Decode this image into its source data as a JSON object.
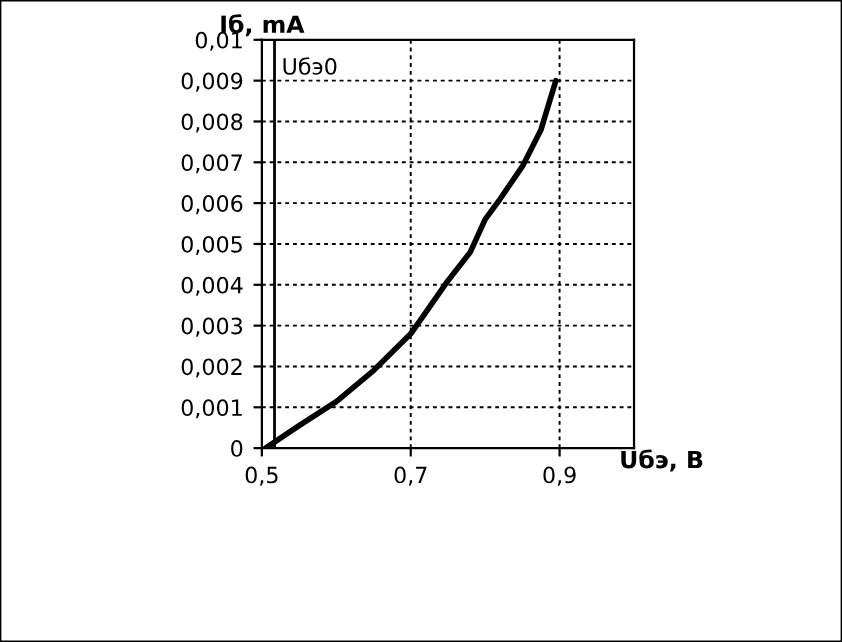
{
  "chart_data": {
    "type": "line",
    "xlabel": "Uбэ, В",
    "ylabel": "Iб, mA",
    "series": [
      {
        "color": "#000000",
        "x": [
          0.505,
          0.55,
          0.6,
          0.65,
          0.7,
          0.75,
          0.78,
          0.8,
          0.82,
          0.85,
          0.875,
          0.885,
          0.895
        ],
        "values": [
          0,
          0.00055,
          0.00114,
          0.0019,
          0.0028,
          0.0041,
          0.0048,
          0.0056,
          0.0061,
          0.0069,
          0.0078,
          0.0084,
          0.009
        ]
      }
    ],
    "xlim": [
      0.5,
      1.0
    ],
    "ylim": [
      0,
      0.01
    ],
    "xticks": [
      {
        "value": 0.5,
        "label": "0,5"
      },
      {
        "value": 0.7,
        "label": "0,7"
      },
      {
        "value": 0.9,
        "label": "0,9"
      }
    ],
    "yticks": [
      0,
      {
        "value": 0.001,
        "label": "0,001"
      },
      {
        "value": 0.002,
        "label": "0,002"
      },
      {
        "value": 0.003,
        "label": "0,003"
      },
      {
        "value": 0.004,
        "label": "0,004"
      },
      {
        "value": 0.005,
        "label": "0,005"
      },
      {
        "value": 0.006,
        "label": "0,006"
      },
      {
        "value": 0.007,
        "label": "0,007"
      },
      {
        "value": 0.008,
        "label": "0,008"
      },
      {
        "value": 0.009,
        "label": "0,009"
      },
      {
        "value": 0.01,
        "label": "0,01"
      }
    ],
    "ref_lines": [
      {
        "axis": "x",
        "value": 0.517,
        "label": "Uбэ0",
        "color": "#000000",
        "line_style": "solid"
      }
    ],
    "grid": true,
    "legend": false,
    "marker": "none",
    "line_style": "solid"
  }
}
